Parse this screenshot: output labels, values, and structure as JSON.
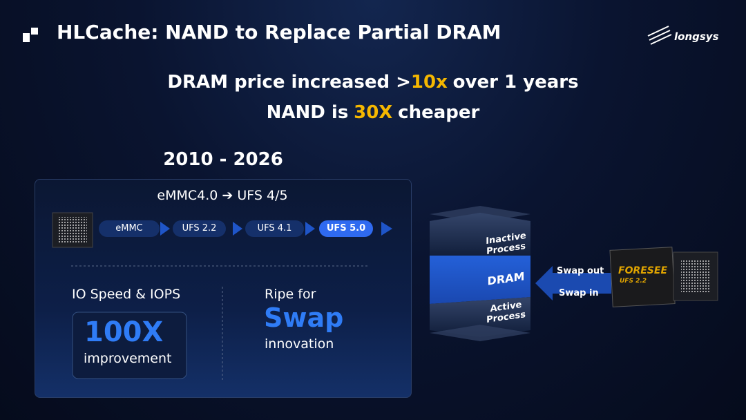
{
  "header": {
    "title": "HLCache: NAND to Replace Partial DRAM",
    "logo": "longsys"
  },
  "headline": {
    "line1": {
      "before": "DRAM price increased >",
      "highlight": "10x",
      "after": "over 1 years"
    },
    "line2": {
      "before": "NAND is",
      "highlight": "30X",
      "after": "cheaper"
    }
  },
  "timeline": {
    "period": "2010 - 2026",
    "subtitle": "eMMC4.0 ➔ UFS 4/5",
    "stages": [
      "eMMC",
      "UFS 2.2",
      "UFS 4.1",
      "UFS 5.0"
    ]
  },
  "benefits": [
    {
      "label": "IO Speed & IOPS",
      "value": "100X",
      "caption": "improvement"
    },
    {
      "label": "Ripe for",
      "value": "Swap",
      "caption": "innovation"
    }
  ],
  "memory": {
    "layers": [
      "Inactive Process",
      "DRAM",
      "Active Process"
    ],
    "swap_out": "Swap out",
    "swap_in": "Swap in",
    "chip_brand": "FORESEE",
    "chip_model": "UFS 2.2"
  }
}
